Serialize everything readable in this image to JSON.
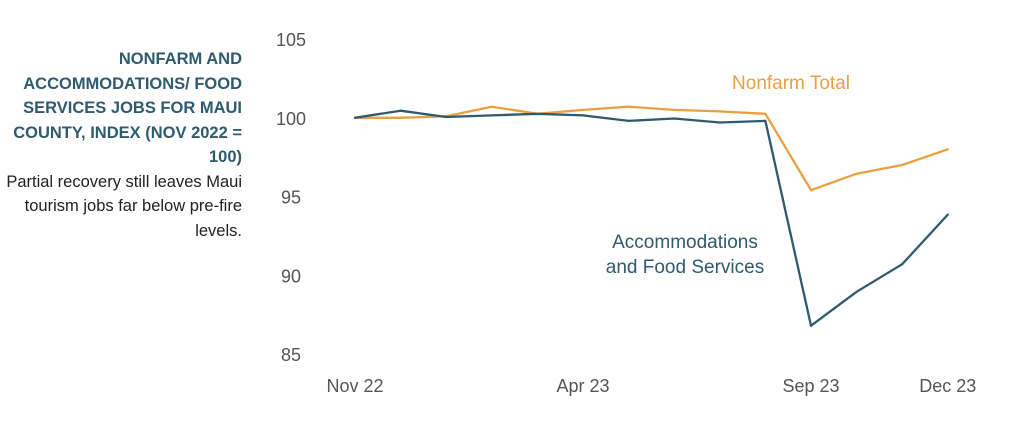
{
  "chart_data": {
    "type": "line",
    "title": "NONFARM AND ACCOMMODATIONS/ FOOD SERVICES JOBS FOR MAUI COUNTY, INDEX (NOV 2022 = 100)",
    "subtitle": "Partial recovery still leaves Maui tourism jobs far below pre-fire levels.",
    "xlabel": "",
    "ylabel": "",
    "ylim": [
      85,
      105
    ],
    "yticks": [
      105,
      100,
      95,
      90,
      85
    ],
    "x": [
      "Nov 22",
      "Dec 22",
      "Jan 23",
      "Feb 23",
      "Mar 23",
      "Apr 23",
      "May 23",
      "Jun 23",
      "Jul 23",
      "Aug 23",
      "Sep 23",
      "Oct 23",
      "Nov 23",
      "Dec 23"
    ],
    "xtick_labels": [
      {
        "index": 0,
        "label": "Nov 22"
      },
      {
        "index": 5,
        "label": "Apr 23"
      },
      {
        "index": 10,
        "label": "Sep 23"
      },
      {
        "index": 13,
        "label": "Dec 23"
      }
    ],
    "grid": false,
    "series": [
      {
        "name": "Nonfarm Total",
        "label_lines": [
          "Nonfarm Total"
        ],
        "color": "#e8a040",
        "values": [
          100,
          100,
          100.1,
          100.7,
          100.25,
          100.5,
          100.7,
          100.5,
          100.4,
          100.25,
          95.4,
          96.45,
          97.0,
          98.0
        ]
      },
      {
        "name": "Accommodations and Food Services",
        "label_lines": [
          "Accommodations",
          "and Food Services"
        ],
        "color": "#2f5b6e",
        "values": [
          100,
          100.45,
          100.05,
          100.15,
          100.25,
          100.15,
          99.8,
          99.95,
          99.7,
          99.8,
          86.8,
          88.95,
          90.7,
          93.85
        ]
      }
    ]
  }
}
